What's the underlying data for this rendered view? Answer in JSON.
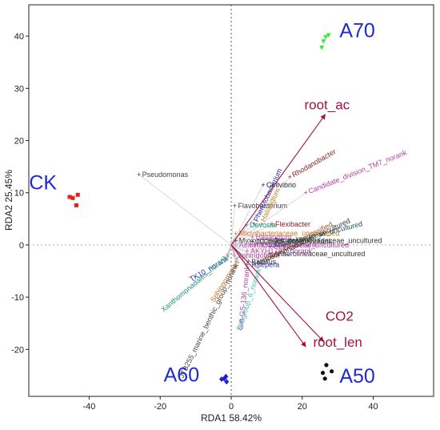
{
  "chart_data": {
    "type": "scatter",
    "title": "",
    "xlabel": "RDA1  58.42%",
    "ylabel": "RDA2  25.45%",
    "xlim": [
      -57,
      57
    ],
    "ylim": [
      -29,
      46
    ],
    "x_ticks": [
      -40,
      -20,
      0,
      20,
      40
    ],
    "y_ticks": [
      -20,
      -10,
      0,
      10,
      20,
      30,
      40
    ],
    "reference_lines": {
      "x": 0,
      "y": 0,
      "style": "dotted"
    },
    "groups": [
      {
        "name": "CK",
        "color": "#e8201c",
        "marker": "square",
        "label_pos": [
          -53,
          12
        ],
        "points": [
          [
            -45.5,
            9.2
          ],
          [
            -43.2,
            9.6
          ],
          [
            -43.6,
            7.6
          ],
          [
            -44.6,
            9.0
          ]
        ]
      },
      {
        "name": "A70",
        "color": "#3ee83a",
        "marker": "triangle",
        "label_pos": [
          35.5,
          41.2
        ],
        "points": [
          [
            26.6,
            39.8
          ],
          [
            27.4,
            40.2
          ],
          [
            26.0,
            39.0
          ],
          [
            25.5,
            37.8
          ]
        ]
      },
      {
        "name": "A60",
        "color": "#1f1fd6",
        "marker": "diamond",
        "label_pos": [
          -14,
          -24.8
        ],
        "points": [
          [
            -1.5,
            -25.2
          ],
          [
            -2.7,
            -25.7
          ],
          [
            -1.3,
            -26.2
          ],
          [
            -2.0,
            -25.6
          ]
        ]
      },
      {
        "name": "A50",
        "color": "#111111",
        "marker": "circle",
        "label_pos": [
          35.5,
          -25.0
        ],
        "points": [
          [
            26.8,
            -23.0
          ],
          [
            28.3,
            -24.2
          ],
          [
            25.8,
            -24.5
          ],
          [
            26.4,
            -25.6
          ]
        ]
      }
    ],
    "env_vectors": [
      {
        "name": "root_ac",
        "x": 26.5,
        "y": 25.0,
        "color": "#a4123f",
        "label_pos": [
          27,
          26
        ]
      },
      {
        "name": "CO2",
        "x": 26.0,
        "y": -18.5,
        "color": "#a4123f",
        "label_pos": [
          30.5,
          -14.5
        ]
      },
      {
        "name": "root_len",
        "x": 21.0,
        "y": -19.5,
        "color": "#a4123f",
        "label_pos": [
          30.0,
          -19.5
        ]
      }
    ],
    "species": [
      {
        "name": "Pseudomonas",
        "x": -26,
        "y": 13.5,
        "color": "#444444",
        "mode": "plus",
        "angle": 0
      },
      {
        "name": "Cellvibrio",
        "x": 9,
        "y": 11.5,
        "color": "#222222",
        "mode": "plus",
        "angle": 0
      },
      {
        "name": "Flavobacterium",
        "x": 1,
        "y": 7.5,
        "color": "#444444",
        "mode": "plus",
        "angle": 0
      },
      {
        "name": "Rhodanobacter",
        "x": 16.5,
        "y": 13,
        "color": "#8b1a1a",
        "mode": "plus",
        "angle": -30
      },
      {
        "name": "Candidate_division_TM7_norank",
        "x": 21,
        "y": 10,
        "color": "#b23fa8",
        "mode": "plus",
        "angle": -22
      },
      {
        "name": "Phenylobacterium",
        "x": 6.5,
        "y": 4,
        "color": "#2a2aa8",
        "mode": "plus",
        "angle": -65
      },
      {
        "name": "Haliangium",
        "x": 8.5,
        "y": 4,
        "color": "#c68a1f",
        "mode": "plus",
        "angle": -65
      },
      {
        "name": "Flexibacter",
        "x": 11.5,
        "y": 4,
        "color": "#8b1a1a",
        "mode": "plus",
        "angle": 0
      },
      {
        "name": "Devosia",
        "x": 4.3,
        "y": 3.8,
        "color": "#1b8f7a",
        "mode": "plus",
        "angle": 0
      },
      {
        "name": "Microbacteriaceae_unclassified",
        "x": 1.3,
        "y": 2.2,
        "color": "#d07a1a",
        "mode": "plus",
        "angle": 0
      },
      {
        "name": "Myxococcales_norank",
        "x": 1.3,
        "y": 0.8,
        "color": "#333333",
        "mode": "plus",
        "angle": 0
      },
      {
        "name": "Acidimicrobiales_norank",
        "x": 1.3,
        "y": 0.0,
        "color": "#b23fa8",
        "mode": "plus",
        "angle": 0
      },
      {
        "name": "Haliangium",
        "x": 6,
        "y": 1.5,
        "color": "#b23fa8",
        "mode": "plus",
        "angle": 0
      },
      {
        "name": "JG30-KF-CM45_norank",
        "x": 6,
        "y": 0.7,
        "color": "#333333",
        "mode": "plus",
        "angle": 0
      },
      {
        "name": "Rhodospirillaceae_uncultured",
        "x": 5.5,
        "y": 0.0,
        "color": "#b23fa8",
        "mode": "plus",
        "angle": 0
      },
      {
        "name": "Gemmatimonadaceae_uncultured",
        "x": 11,
        "y": 0.8,
        "color": "#333333",
        "mode": "plus",
        "angle": 0
      },
      {
        "name": "Anaerolineaceae_uncultured",
        "x": 11,
        "y": -0.3,
        "color": "#1b4f5f",
        "mode": "plus",
        "angle": -14
      },
      {
        "name": "Anaerolineaceae_uncultured",
        "x": 11,
        "y": -1.7,
        "color": "#333333",
        "mode": "plus",
        "angle": 0
      },
      {
        "name": "Sphingobium",
        "x": 0.8,
        "y": -2.0,
        "color": "#b23fa8",
        "mode": "plus",
        "angle": 0
      },
      {
        "name": "AKYH1722_norank",
        "x": 4.5,
        "y": -1.2,
        "color": "#b23fa8",
        "mode": "plus",
        "angle": 0
      },
      {
        "name": "Chloroflexi_unclassified",
        "x": 8.8,
        "y": -3,
        "color": "#a0522d",
        "mode": "plus",
        "angle": -28
      },
      {
        "name": "Nitrosomonadaceae_uncultured",
        "x": 6.5,
        "y": -3.8,
        "color": "#333333",
        "mode": "plus",
        "angle": -25
      },
      {
        "name": "Bacillus",
        "x": 4.8,
        "y": -3.2,
        "color": "#333333",
        "mode": "plus",
        "angle": 0
      },
      {
        "name": "Truepera",
        "x": 4.5,
        "y": -3.8,
        "color": "#2a2aa8",
        "mode": "plus",
        "angle": 0
      },
      {
        "name": "TK10_norank",
        "x": -1.0,
        "y": -2.5,
        "color": "#2a2aa8",
        "mode": "end",
        "angle": -30
      },
      {
        "name": "Xanthomonadales_norank",
        "x": -1.3,
        "y": -2.2,
        "color": "#1b8f7a",
        "mode": "end",
        "angle": -40
      },
      {
        "name": "Sphingomonas",
        "x": 1.8,
        "y": -3.0,
        "color": "#d2691e",
        "mode": "end",
        "angle": -58
      },
      {
        "name": "JTB255_marine_benthic_group_norank",
        "x": 1.5,
        "y": -3.6,
        "color": "#444444",
        "mode": "end",
        "angle": -64
      },
      {
        "name": "Gitt-GS-136_norank",
        "x": 4.5,
        "y": -4.0,
        "color": "#b23fa8",
        "mode": "end",
        "angle": -84
      },
      {
        "name": "Subgroup_6_norank",
        "x": 7.8,
        "y": -4.5,
        "color": "#3cc9c0",
        "mode": "end",
        "angle": -72
      }
    ]
  }
}
